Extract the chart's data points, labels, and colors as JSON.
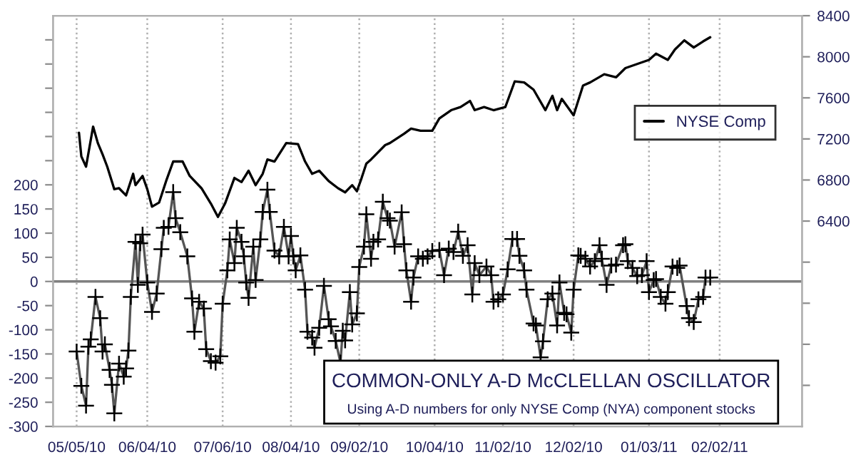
{
  "chart_data": {
    "type": "line",
    "title": "COMMON-ONLY A-D McCLELLAN OSCILLATOR",
    "subtitle": "Using A-D numbers for only NYSE Comp (NYA) component stocks",
    "xlim": [
      "2010-04-25",
      "2011-03-09"
    ],
    "xticks": [
      {
        "value": "2010-05-05",
        "label": "05/05/10"
      },
      {
        "value": "2010-06-04",
        "label": "06/04/10"
      },
      {
        "value": "2010-07-06",
        "label": "07/06/10"
      },
      {
        "value": "2010-08-04",
        "label": "08/04/10"
      },
      {
        "value": "2010-09-02",
        "label": "09/02/10"
      },
      {
        "value": "2010-10-04",
        "label": "10/04/10"
      },
      {
        "value": "2010-11-02",
        "label": "11/02/10"
      },
      {
        "value": "2010-12-02",
        "label": "12/02/10"
      },
      {
        "value": "2011-01-03",
        "label": "01/03/11"
      },
      {
        "value": "2011-02-02",
        "label": "02/02/11"
      }
    ],
    "ylim": [
      -300,
      550
    ],
    "yticks": [
      -300,
      -250,
      -200,
      -150,
      -100,
      -50,
      0,
      50,
      100,
      150,
      200,
      {
        "value": 250,
        "label": null
      },
      {
        "value": 300,
        "label": null
      },
      {
        "value": 350,
        "label": null
      },
      {
        "value": 400,
        "label": null
      },
      {
        "value": 450,
        "label": null
      },
      {
        "value": 500,
        "label": null
      }
    ],
    "y2lim": [
      4400,
      8400
    ],
    "y2ticks": [
      {
        "value": 4800,
        "label": null
      },
      {
        "value": 5200,
        "label": null
      },
      {
        "value": 5600,
        "label": null
      },
      {
        "value": 6000,
        "label": null
      },
      6400,
      6800,
      7200,
      7600,
      8000,
      8400
    ],
    "grid": "x",
    "legend": "right",
    "ref_lines": [
      {
        "axis": "y",
        "value": 0,
        "color": "#808080"
      }
    ],
    "series": [
      {
        "color": "#555555",
        "marker": "cross",
        "x": [
          "2010-05-05",
          "2010-05-07",
          "2010-05-09",
          "2010-05-10",
          "2010-05-11",
          "2010-05-13",
          "2010-05-15",
          "2010-05-16",
          "2010-05-17",
          "2010-05-19",
          "2010-05-20",
          "2010-05-21",
          "2010-05-23",
          "2010-05-25",
          "2010-05-26",
          "2010-05-27",
          "2010-05-28",
          "2010-05-30",
          "2010-05-31",
          "2010-06-01",
          "2010-06-02",
          "2010-06-04",
          "2010-06-06",
          "2010-06-08",
          "2010-06-10",
          "2010-06-11",
          "2010-06-13",
          "2010-06-15",
          "2010-06-16",
          "2010-06-18",
          "2010-06-21",
          "2010-06-23",
          "2010-06-24",
          "2010-06-26",
          "2010-06-28",
          "2010-06-29",
          "2010-07-01",
          "2010-07-03",
          "2010-07-05",
          "2010-07-06",
          "2010-07-08",
          "2010-07-09",
          "2010-07-11",
          "2010-07-12",
          "2010-07-14",
          "2010-07-15",
          "2010-07-16",
          "2010-07-17",
          "2010-07-19",
          "2010-07-20",
          "2010-07-22",
          "2010-07-23",
          "2010-07-25",
          "2010-07-26",
          "2010-07-28",
          "2010-07-30",
          "2010-08-01",
          "2010-08-03",
          "2010-08-04",
          "2010-08-05",
          "2010-08-06",
          "2010-08-08",
          "2010-08-10",
          "2010-08-11",
          "2010-08-13",
          "2010-08-14",
          "2010-08-16",
          "2010-08-18",
          "2010-08-20",
          "2010-08-21",
          "2010-08-23",
          "2010-08-25",
          "2010-08-26",
          "2010-08-27",
          "2010-08-29",
          "2010-08-30",
          "2010-09-01",
          "2010-09-02",
          "2010-09-04",
          "2010-09-05",
          "2010-09-07",
          "2010-09-08",
          "2010-09-10",
          "2010-09-12",
          "2010-09-14",
          "2010-09-15",
          "2010-09-17",
          "2010-09-20",
          "2010-09-21",
          "2010-09-22",
          "2010-09-24",
          "2010-09-25",
          "2010-09-27",
          "2010-09-29",
          "2010-10-01",
          "2010-10-03",
          "2010-10-06",
          "2010-10-08",
          "2010-10-10",
          "2010-10-12",
          "2010-10-14",
          "2010-10-16",
          "2010-10-18",
          "2010-10-20",
          "2010-10-21",
          "2010-10-23",
          "2010-10-26",
          "2010-10-28",
          "2010-10-29",
          "2010-10-31",
          "2010-11-02",
          "2010-11-04",
          "2010-11-06",
          "2010-11-08",
          "2010-11-09",
          "2010-11-11",
          "2010-11-12",
          "2010-11-15",
          "2010-11-16",
          "2010-11-18",
          "2010-11-19",
          "2010-11-21",
          "2010-11-23",
          "2010-11-25",
          "2010-11-26",
          "2010-11-28",
          "2010-11-29",
          "2010-12-01",
          "2010-12-02",
          "2010-12-04",
          "2010-12-05",
          "2010-12-07",
          "2010-12-09",
          "2010-12-11",
          "2010-12-13",
          "2010-12-14",
          "2010-12-16",
          "2010-12-18",
          "2010-12-20",
          "2010-12-23",
          "2010-12-24",
          "2010-12-25",
          "2010-12-27",
          "2010-12-29",
          "2010-12-31",
          "2011-01-02",
          "2011-01-03",
          "2011-01-05",
          "2011-01-06",
          "2011-01-08",
          "2011-01-10",
          "2011-01-11",
          "2011-01-13",
          "2011-01-15",
          "2011-01-16",
          "2011-01-19",
          "2011-01-20",
          "2011-01-22",
          "2011-01-24",
          "2011-01-26",
          "2011-01-27",
          "2011-01-29"
        ],
        "values": [
          -145,
          -216,
          -257,
          -135,
          -120,
          -32,
          -76,
          -145,
          -130,
          -183,
          -214,
          -273,
          -170,
          -197,
          -180,
          -143,
          -32,
          82,
          -7,
          79,
          97,
          -2,
          -63,
          -25,
          67,
          111,
          113,
          185,
          131,
          102,
          52,
          -35,
          -104,
          -42,
          -56,
          -140,
          -165,
          -168,
          -155,
          -46,
          23,
          87,
          38,
          111,
          82,
          52,
          -2,
          -34,
          72,
          3,
          87,
          144,
          190,
          144,
          64,
          52,
          113,
          52,
          94,
          52,
          23,
          54,
          -17,
          -104,
          -116,
          -137,
          -96,
          -9,
          -78,
          -93,
          -123,
          -168,
          -102,
          -122,
          -22,
          -89,
          -66,
          30,
          72,
          139,
          47,
          82,
          87,
          165,
          131,
          126,
          72,
          143,
          77,
          23,
          -42,
          8,
          52,
          47,
          52,
          63,
          65,
          13,
          68,
          61,
          103,
          53,
          75,
          -27,
          38,
          13,
          31,
          13,
          -42,
          -37,
          -27,
          25,
          88,
          88,
          53,
          23,
          -17,
          -87,
          -91,
          -157,
          -124,
          -37,
          -25,
          -91,
          -2,
          -65,
          -68,
          -106,
          -17,
          54,
          53,
          47,
          31,
          42,
          75,
          47,
          -7,
          33,
          35,
          75,
          77,
          42,
          28,
          11,
          13,
          42,
          -22,
          3,
          5,
          -32,
          -46,
          -22,
          31,
          28,
          33,
          -51,
          -76,
          -84,
          -37,
          -32,
          8,
          8
        ]
      },
      {
        "name": "NYSE Comp",
        "axis": "y2",
        "color": "#000000",
        "x": [
          "2010-05-06",
          "2010-05-07",
          "2010-05-09",
          "2010-05-12",
          "2010-05-14",
          "2010-05-16",
          "2010-05-18",
          "2010-05-21",
          "2010-05-23",
          "2010-05-26",
          "2010-05-29",
          "2010-05-30",
          "2010-06-02",
          "2010-06-04",
          "2010-06-06",
          "2010-06-09",
          "2010-06-12",
          "2010-06-15",
          "2010-06-19",
          "2010-06-22",
          "2010-06-27",
          "2010-07-01",
          "2010-07-04",
          "2010-07-07",
          "2010-07-11",
          "2010-07-14",
          "2010-07-17",
          "2010-07-20",
          "2010-07-23",
          "2010-07-25",
          "2010-07-28",
          "2010-08-02",
          "2010-08-07",
          "2010-08-10",
          "2010-08-13",
          "2010-08-16",
          "2010-08-20",
          "2010-08-24",
          "2010-08-27",
          "2010-08-30",
          "2010-09-01",
          "2010-09-03",
          "2010-09-05",
          "2010-09-07",
          "2010-09-13",
          "2010-09-15",
          "2010-09-21",
          "2010-09-24",
          "2010-09-28",
          "2010-10-03",
          "2010-10-06",
          "2010-10-11",
          "2010-10-15",
          "2010-10-19",
          "2010-10-21",
          "2010-10-25",
          "2010-10-29",
          "2010-11-03",
          "2010-11-07",
          "2010-11-11",
          "2010-11-15",
          "2010-11-20",
          "2010-11-23",
          "2010-11-25",
          "2010-11-27",
          "2010-12-02",
          "2010-12-06",
          "2010-12-09",
          "2010-12-15",
          "2010-12-20",
          "2010-12-24",
          "2010-12-29",
          "2011-01-03",
          "2011-01-06",
          "2011-01-11",
          "2011-01-14",
          "2011-01-18",
          "2011-01-22",
          "2011-01-26",
          "2011-01-29"
        ],
        "values": [
          7260,
          7030,
          6930,
          7320,
          7160,
          7050,
          6930,
          6710,
          6720,
          6650,
          6860,
          6750,
          6840,
          6710,
          6540,
          6580,
          6790,
          6980,
          6980,
          6840,
          6720,
          6570,
          6440,
          6570,
          6820,
          6780,
          6890,
          6750,
          6860,
          7000,
          6980,
          7160,
          7150,
          6980,
          6860,
          6890,
          6790,
          6720,
          6680,
          6750,
          6690,
          6820,
          6960,
          7000,
          7140,
          7160,
          7250,
          7300,
          7280,
          7280,
          7400,
          7480,
          7510,
          7570,
          7480,
          7510,
          7480,
          7510,
          7760,
          7750,
          7680,
          7480,
          7620,
          7480,
          7590,
          7430,
          7720,
          7750,
          7830,
          7800,
          7890,
          7930,
          7970,
          8030,
          7970,
          8070,
          8160,
          8090,
          8150,
          8190
        ]
      }
    ]
  }
}
